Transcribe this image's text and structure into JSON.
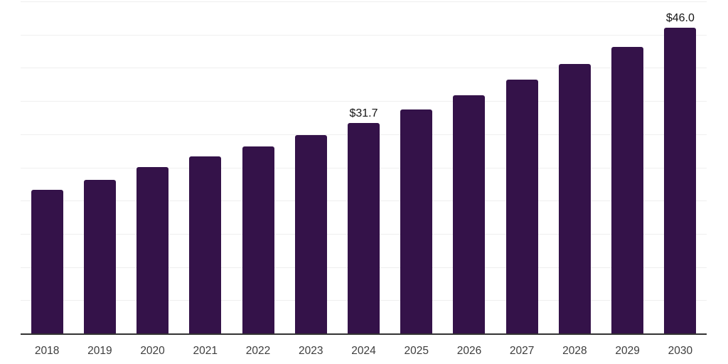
{
  "chart_data": {
    "type": "bar",
    "categories": [
      "2018",
      "2019",
      "2020",
      "2021",
      "2022",
      "2023",
      "2024",
      "2025",
      "2026",
      "2027",
      "2028",
      "2029",
      "2030"
    ],
    "values": [
      21.6,
      23.1,
      25.1,
      26.7,
      28.2,
      29.9,
      31.7,
      33.7,
      35.9,
      38.2,
      40.6,
      43.2,
      46.0
    ],
    "data_labels": [
      "",
      "",
      "",
      "",
      "",
      "",
      "$31.7",
      "",
      "",
      "",
      "",
      "",
      "$46.0"
    ],
    "ylim": [
      0,
      50
    ],
    "gridline_step": 5,
    "grid": "horizontal",
    "legend_position": "none",
    "xlabel": "",
    "ylabel": "",
    "colors": {
      "bar": "#341249",
      "grid": "#efefef",
      "axis": "#333333",
      "tick_label": "#3d3d3d",
      "data_label": "#141414",
      "background": "#ffffff"
    }
  }
}
